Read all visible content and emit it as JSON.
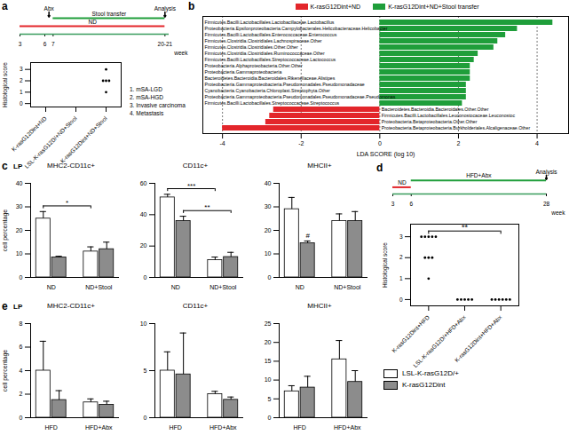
{
  "chart_data": [
    {
      "type": "timeline",
      "panel": "a",
      "xlim": [
        3,
        21
      ],
      "xticks": [
        3,
        6,
        7,
        {
          "value": 20.5,
          "label": "20-21"
        }
      ],
      "xlabel": "week",
      "periods": [
        {
          "label": "ND",
          "start": 3,
          "end": 20.5,
          "color": "#e3262b"
        },
        {
          "label": "Stool transfer",
          "start": 7,
          "end": 20.5,
          "color": "#1f9e3a"
        }
      ],
      "events": [
        {
          "label": "Abx",
          "week": 6.5
        },
        {
          "label": "Analysis",
          "week": 20.5
        }
      ]
    },
    {
      "type": "dot",
      "ylabel": "Histological score",
      "categories": [
        "K-rasG12Dint+ND",
        "LSL-K-rasG12D/+ND+Stool",
        "K-rasG12Dint+ND+Stool"
      ],
      "values": [
        [],
        [],
        [
          3,
          2,
          2,
          2,
          1
        ]
      ],
      "ylim": [
        -0.3,
        3.6
      ],
      "yticks": [
        0,
        1,
        2,
        3
      ],
      "notes": [
        "1. mSA-LGD",
        "2. mSA-HGD",
        "3. Invasive carcinoma",
        "4. Metastasis"
      ]
    },
    {
      "type": "bar",
      "panel": "b",
      "orientation": "horizontal",
      "xlabel": "LDA SCORE (log 10)",
      "categories": [
        "Firmicutes.Bacilli.Lactobacillales.Lactobacillaceae.Lactobacillus",
        "Proteobacteria.Epsilonproteobacteria.Campylobacterales.Helicobacteraceae.Helicobacter",
        "Firmicutes.Bacilli.Lactobacillales.Enterococcaceae.Enterococcus",
        "Firmicutes.Clostridia.Clostridiales.Lachnospiraceae.Other",
        "Firmicutes.Clostridia.Clostridiales.Other.Other",
        "Firmicutes.Clostridia.Clostridiales.Ruminococcaceae.Other",
        "Firmicutes.Bacilli.Lactobacillales.Streptococcaceae.Lactococcus",
        "Proteobacteria.Alphaproteobacteria.Other.Other",
        "Proteobacteria.Gammaproteobacteria",
        "Bacteroidetes.Bacteroidia.Bacteroidales.Rikenellaceae.Alistipes",
        "Proteobacteria.Gammaproteobacteria.Pseudomonadales.Pseudomonadaceae",
        "Cyanobacteria.Cyanobacteria.Chloroplast.Streptophyta.Other",
        "Proteobacteria.Gammaproteobacteria.Pseudomonadales.Pseudomonadaceae.Pseudomonas",
        "Firmicutes.Bacilli.Lactobacillales.Streptococcaceae.Streptococcus",
        "Bacteroidetes.Bacteroidia.Bacteroidales.Other.Other",
        "Firmicutes.Bacilli.Lactobacillales.Leuconostocaceae.Leuconostoc",
        "Proteobacteria.Betaproteobacteria.Other.Other",
        "Proteobacteria.Betaproteobacteria.Burkholderiales.Alcaligenaceae.Other"
      ],
      "series": [
        {
          "name": "K-rasG12Dint+ND",
          "color": "#e3262b",
          "values": [
            null,
            null,
            null,
            null,
            null,
            null,
            null,
            null,
            null,
            null,
            null,
            null,
            null,
            null,
            -2.7,
            -2.8,
            -2.9,
            -4.0
          ]
        },
        {
          "name": "K-rasG12Dint+ND+Stool transfer",
          "color": "#1f9e3a",
          "values": [
            4.4,
            3.5,
            3.2,
            3.0,
            2.9,
            2.5,
            2.4,
            2.3,
            2.3,
            2.3,
            2.2,
            2.2,
            2.2,
            2.1,
            null,
            null,
            null,
            null
          ]
        }
      ],
      "xlim": [
        -4.5,
        4.8
      ],
      "xticks": [
        -4,
        -2,
        0,
        2,
        4
      ],
      "grid": true,
      "legend": "top"
    },
    {
      "type": "bar",
      "panel": "c",
      "annotation": "LP",
      "title": "MHC2-CD11c+",
      "ylabel": "cell percentage",
      "categories": [
        "ND",
        "ND+Stool"
      ],
      "series": [
        {
          "color": "#ffffff",
          "values": [
            25,
            11
          ],
          "errors": [
            3,
            2
          ]
        },
        {
          "color": "#8c8c8c",
          "values": [
            8.5,
            12
          ],
          "errors": [
            0.5,
            3
          ]
        }
      ],
      "ylim": [
        0,
        40
      ],
      "yticks": [
        0,
        10,
        20,
        30,
        40
      ],
      "significance": [
        {
          "text": "*",
          "from": [
            0,
            0
          ],
          "to": [
            1,
            0
          ]
        }
      ]
    },
    {
      "type": "bar",
      "title": "CD11c+",
      "categories": [
        "ND",
        "ND+Stool"
      ],
      "series": [
        {
          "color": "#ffffff",
          "values": [
            51,
            11
          ],
          "errors": [
            2,
            2
          ]
        },
        {
          "color": "#8c8c8c",
          "values": [
            36,
            13
          ],
          "errors": [
            3,
            3
          ]
        }
      ],
      "ylim": [
        0,
        60
      ],
      "yticks": [
        0,
        20,
        40,
        60
      ],
      "significance": [
        {
          "text": "***",
          "from": [
            0,
            0
          ],
          "to": [
            1,
            0
          ]
        },
        {
          "text": "**",
          "from": [
            0,
            1
          ],
          "to": [
            1,
            1
          ]
        }
      ]
    },
    {
      "type": "bar",
      "title": "MHCII+",
      "categories": [
        "ND",
        "ND+Stool"
      ],
      "series": [
        {
          "color": "#ffffff",
          "values": [
            29,
            24
          ],
          "errors": [
            5,
            3
          ]
        },
        {
          "color": "#8c8c8c",
          "values": [
            14.5,
            24
          ],
          "errors": [
            1,
            4
          ]
        }
      ],
      "ylim": [
        0,
        40
      ],
      "yticks": [
        0,
        10,
        20,
        30,
        40
      ],
      "significance": [
        {
          "text": "#",
          "at": [
            0,
            1
          ]
        }
      ]
    },
    {
      "type": "timeline",
      "panel": "d",
      "xlim": [
        3,
        28
      ],
      "xticks": [
        3,
        6,
        28
      ],
      "xlabel": "week",
      "periods": [
        {
          "label": "ND",
          "start": 3,
          "end": 6,
          "color": "#e3262b"
        },
        {
          "label": "HFD+Abx",
          "start": 6,
          "end": 28,
          "color": "#1f9e3a"
        }
      ],
      "events": [
        {
          "label": "Analysis",
          "week": 28
        }
      ]
    },
    {
      "type": "dot",
      "ylabel": "Histological score",
      "categories": [
        "K-rasG12Dint+HFD",
        "LSL-K-rasG12D/+HFD+Abx",
        "K-rasG12Dint+HFD+Abx"
      ],
      "values": [
        [
          3,
          3,
          3,
          3,
          3,
          2,
          2,
          2,
          1
        ],
        [
          0,
          0,
          0,
          0,
          0
        ],
        [
          0,
          0,
          0,
          0,
          0,
          0
        ]
      ],
      "ylim": [
        -0.3,
        3.6
      ],
      "yticks": [
        0,
        1,
        2,
        3
      ],
      "significance": [
        {
          "text": "**",
          "from": 0,
          "to": 2
        }
      ]
    },
    {
      "type": "bar",
      "panel": "e",
      "annotation": "LP",
      "title": "MHC2-CD11c+",
      "ylabel": "cell percentage",
      "categories": [
        "HFD",
        "HFD+Abx"
      ],
      "series": [
        {
          "color": "#ffffff",
          "values": [
            4,
            1.3
          ],
          "errors": [
            2.5,
            0.3
          ]
        },
        {
          "color": "#8c8c8c",
          "values": [
            1.5,
            1.1
          ],
          "errors": [
            0.8,
            0.3
          ]
        }
      ],
      "ylim": [
        0,
        8
      ],
      "yticks": [
        0,
        2,
        4,
        6,
        8
      ]
    },
    {
      "type": "bar",
      "title": "CD11c+",
      "categories": [
        "HFD",
        "HFD+Abx"
      ],
      "series": [
        {
          "color": "#ffffff",
          "values": [
            5,
            2.5
          ],
          "errors": [
            2,
            0.3
          ]
        },
        {
          "color": "#8c8c8c",
          "values": [
            4.6,
            1.9
          ],
          "errors": [
            4.4,
            0.3
          ]
        }
      ],
      "ylim": [
        0,
        10
      ],
      "yticks": [
        0,
        5,
        10
      ]
    },
    {
      "type": "bar",
      "title": "MHCII+",
      "legend": "right",
      "categories": [
        "HFD",
        "HFD+Abx"
      ],
      "series": [
        {
          "name": "LSL-K-rasG12D/+",
          "color": "#ffffff",
          "values": [
            7,
            15.5
          ],
          "errors": [
            1.5,
            5
          ]
        },
        {
          "name": "K-rasG12Dint",
          "color": "#8c8c8c",
          "values": [
            8,
            9.5
          ],
          "errors": [
            3,
            3
          ]
        }
      ],
      "ylim": [
        0,
        25
      ],
      "yticks": [
        0,
        5,
        10,
        15,
        20,
        25
      ]
    }
  ]
}
